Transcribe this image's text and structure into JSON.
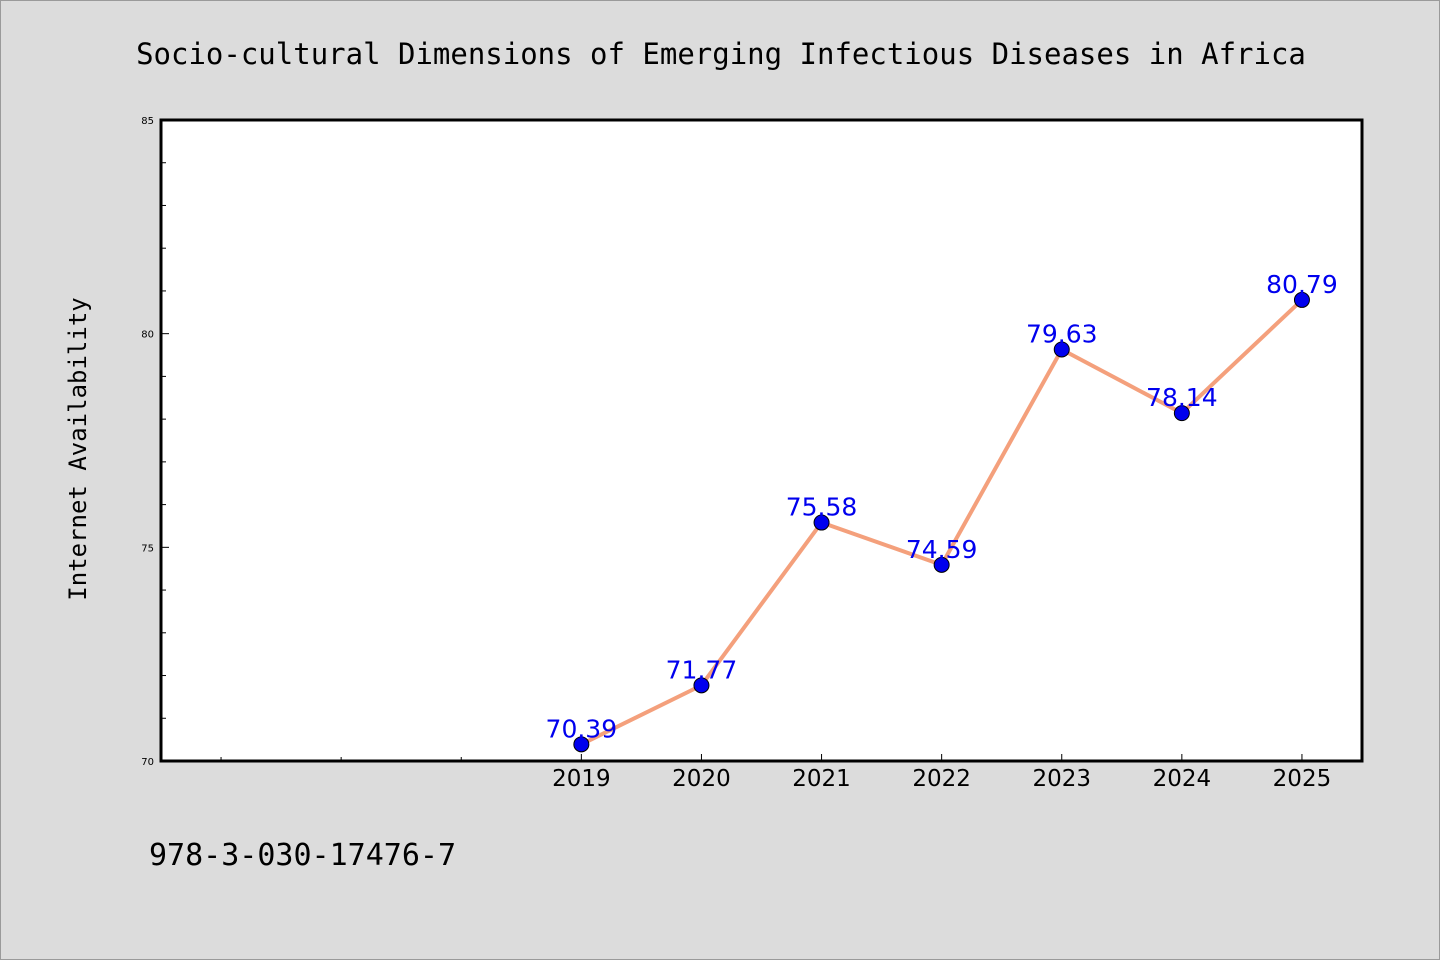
{
  "chart_data": {
    "type": "line",
    "title": "Socio-cultural Dimensions of Emerging Infectious Diseases in Africa",
    "xlabel": "",
    "ylabel": "Internet Availability",
    "categories": [
      "2019",
      "2020",
      "2021",
      "2022",
      "2023",
      "2024",
      "2025"
    ],
    "series": [
      {
        "values": [
          70.39,
          71.77,
          75.58,
          74.59,
          79.63,
          78.14,
          80.79
        ],
        "data_labels": [
          "70.39",
          "71.77",
          "75.58",
          "74.59",
          "79.63",
          "78.14",
          "80.79"
        ],
        "line_color": "#f4a07c",
        "marker_color": "#0000ee",
        "label_color": "#0000ee"
      }
    ],
    "x_range": [
      2015.5,
      2025.5
    ],
    "ylim": [
      70,
      85
    ],
    "y_ticks": [
      70,
      75,
      80,
      85
    ],
    "y_tick_labels": [
      "70",
      "75",
      "80",
      "85"
    ],
    "y_minor_step": 1,
    "x_minor_ticks": [
      2016,
      2017,
      2018
    ],
    "grid": false,
    "legend": "none",
    "annotation": "978-3-030-17476-7",
    "colors": {
      "background": "#dcdcdc",
      "plot_area": "#ffffff",
      "text": "#000000"
    }
  }
}
